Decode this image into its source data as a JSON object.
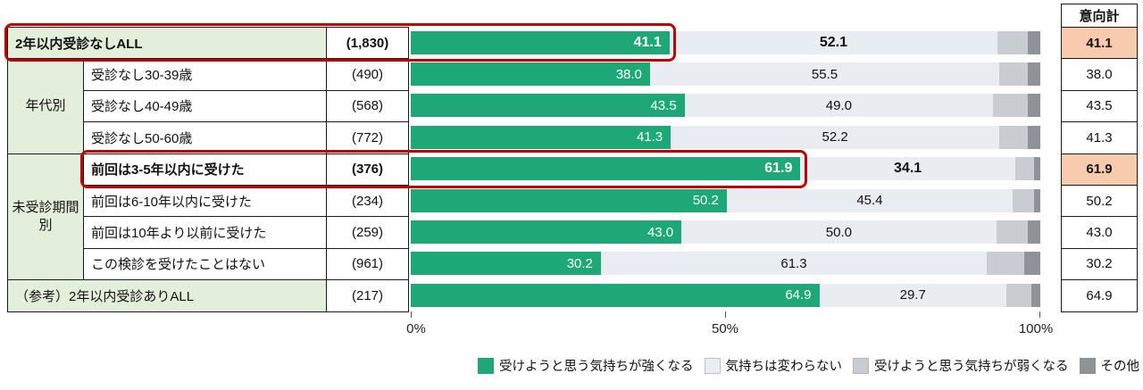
{
  "intent_header": "意向計",
  "axis": {
    "ticks": [
      "0%",
      "50%",
      "100%"
    ]
  },
  "groups": [
    {
      "label": "年代別"
    },
    {
      "label": "未受診期間別"
    }
  ],
  "legend": [
    {
      "label": "受けようと思う気持ちが強くなる",
      "color": "#1ea878"
    },
    {
      "label": "気持ちは変わらない",
      "color": "#e9edf2"
    },
    {
      "label": "受けようと思う気持ちが弱くなる",
      "color": "#c9cdd2"
    },
    {
      "label": "その他",
      "color": "#8f9397"
    }
  ],
  "colors": {
    "row_highlight_border": "#c00000",
    "group_cell_bg": "#e2efda",
    "intent_highlight_bg": "#f8cbad"
  },
  "rows": [
    {
      "label": "2年以内受診なしALL",
      "n": "(1,830)",
      "strong": 41.1,
      "unchanged": 52.1,
      "weaker": 4.8,
      "other": 2.0,
      "strong_label": "41.1",
      "unchanged_label": "52.1",
      "intent": "41.1"
    },
    {
      "label": "受診なし30-39歳",
      "n": "(490)",
      "strong": 38.0,
      "unchanged": 55.5,
      "weaker": 4.5,
      "other": 2.0,
      "strong_label": "38.0",
      "unchanged_label": "55.5",
      "intent": "38.0"
    },
    {
      "label": "受診なし40-49歳",
      "n": "(568)",
      "strong": 43.5,
      "unchanged": 49.0,
      "weaker": 5.5,
      "other": 2.0,
      "strong_label": "43.5",
      "unchanged_label": "49.0",
      "intent": "43.5"
    },
    {
      "label": "受診なし50-60歳",
      "n": "(772)",
      "strong": 41.3,
      "unchanged": 52.2,
      "weaker": 4.5,
      "other": 2.0,
      "strong_label": "41.3",
      "unchanged_label": "52.2",
      "intent": "41.3"
    },
    {
      "label": "前回は3-5年以内に受けた",
      "n": "(376)",
      "strong": 61.9,
      "unchanged": 34.1,
      "weaker": 3.0,
      "other": 1.0,
      "strong_label": "61.9",
      "unchanged_label": "34.1",
      "intent": "61.9"
    },
    {
      "label": "前回は6-10年以内に受けた",
      "n": "(234)",
      "strong": 50.2,
      "unchanged": 45.4,
      "weaker": 3.4,
      "other": 1.0,
      "strong_label": "50.2",
      "unchanged_label": "45.4",
      "intent": "50.2"
    },
    {
      "label": "前回は10年より以前に受けた",
      "n": "(259)",
      "strong": 43.0,
      "unchanged": 50.0,
      "weaker": 5.0,
      "other": 2.0,
      "strong_label": "43.0",
      "unchanged_label": "50.0",
      "intent": "43.0"
    },
    {
      "label": "この検診を受けたことはない",
      "n": "(961)",
      "strong": 30.2,
      "unchanged": 61.3,
      "weaker": 6.0,
      "other": 2.5,
      "strong_label": "30.2",
      "unchanged_label": "61.3",
      "intent": "30.2"
    },
    {
      "label": "（参考）2年以内受診ありALL",
      "n": "(217)",
      "strong": 64.9,
      "unchanged": 29.7,
      "weaker": 4.0,
      "other": 1.4,
      "strong_label": "64.9",
      "unchanged_label": "29.7",
      "intent": "64.9"
    }
  ],
  "chart_data": {
    "type": "bar",
    "orientation": "horizontal",
    "stacked": true,
    "categories": [
      "2年以内受診なしALL",
      "受診なし30-39歳",
      "受診なし40-49歳",
      "受診なし50-60歳",
      "前回は3-5年以内に受けた",
      "前回は6-10年以内に受けた",
      "前回は10年より以前に受けた",
      "この検診を受けたことはない",
      "（参考）2年以内受診ありALL"
    ],
    "sample_sizes": [
      "(1,830)",
      "(490)",
      "(568)",
      "(772)",
      "(376)",
      "(234)",
      "(259)",
      "(961)",
      "(217)"
    ],
    "series": [
      {
        "name": "受けようと思う気持ちが強くなる",
        "values": [
          41.1,
          38.0,
          43.5,
          41.3,
          61.9,
          50.2,
          43.0,
          30.2,
          64.9
        ]
      },
      {
        "name": "気持ちは変わらない",
        "values": [
          52.1,
          55.5,
          49.0,
          52.2,
          34.1,
          45.4,
          50.0,
          61.3,
          29.7
        ]
      },
      {
        "name": "受けようと思う気持ちが弱くなる",
        "values": [
          4.8,
          4.5,
          5.5,
          4.5,
          3.0,
          3.4,
          5.0,
          6.0,
          4.0
        ]
      },
      {
        "name": "その他",
        "values": [
          2.0,
          2.0,
          2.0,
          2.0,
          1.0,
          1.0,
          2.0,
          2.5,
          1.4
        ]
      }
    ],
    "intent_total": {
      "label": "意向計",
      "values": [
        41.1,
        38.0,
        43.5,
        41.3,
        61.9,
        50.2,
        43.0,
        30.2,
        64.9
      ]
    },
    "group_labels": {
      "年代別": [
        1,
        2,
        3
      ],
      "未受診期間別": [
        4,
        5,
        6,
        7
      ]
    },
    "highlighted_rows": [
      0,
      4
    ],
    "xlim": [
      0,
      100
    ],
    "x_ticks": [
      "0%",
      "50%",
      "100%"
    ],
    "legend_position": "bottom"
  }
}
